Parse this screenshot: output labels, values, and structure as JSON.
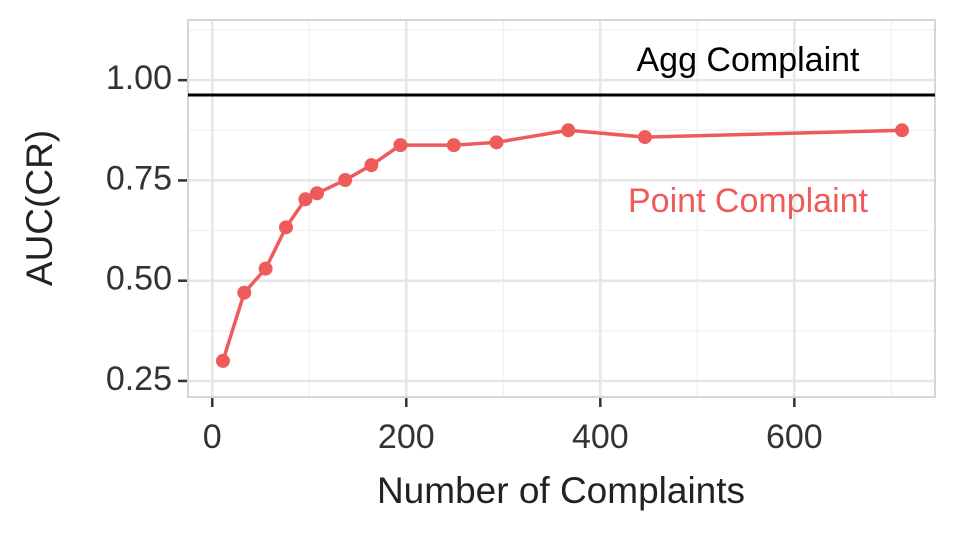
{
  "chart_data": {
    "type": "line",
    "x_label": "Number of Complaints",
    "y_label": "AUC(CR)",
    "xlim": [
      -25,
      745
    ],
    "ylim": [
      0.21,
      1.15
    ],
    "xticks": [
      0,
      200,
      400,
      600
    ],
    "yticks": [
      0.25,
      {
        "value": 0.5,
        "label": "0.50"
      },
      0.75,
      {
        "value": 1,
        "label": "1.00"
      }
    ],
    "grid": true,
    "series": [
      {
        "name": "Point Complaint",
        "color": "#ef5b5b",
        "x": [
          11,
          33,
          55,
          76,
          96,
          108,
          137,
          164,
          194,
          249,
          293,
          367,
          446,
          711
        ],
        "values": [
          0.3,
          0.47,
          0.53,
          0.633,
          0.703,
          0.718,
          0.751,
          0.788,
          0.838,
          0.838,
          0.845,
          0.875,
          0.858,
          0.875
        ]
      }
    ],
    "hlines": [
      {
        "value": 0.963,
        "label": "Agg Complaint",
        "color": "#000000"
      }
    ]
  }
}
